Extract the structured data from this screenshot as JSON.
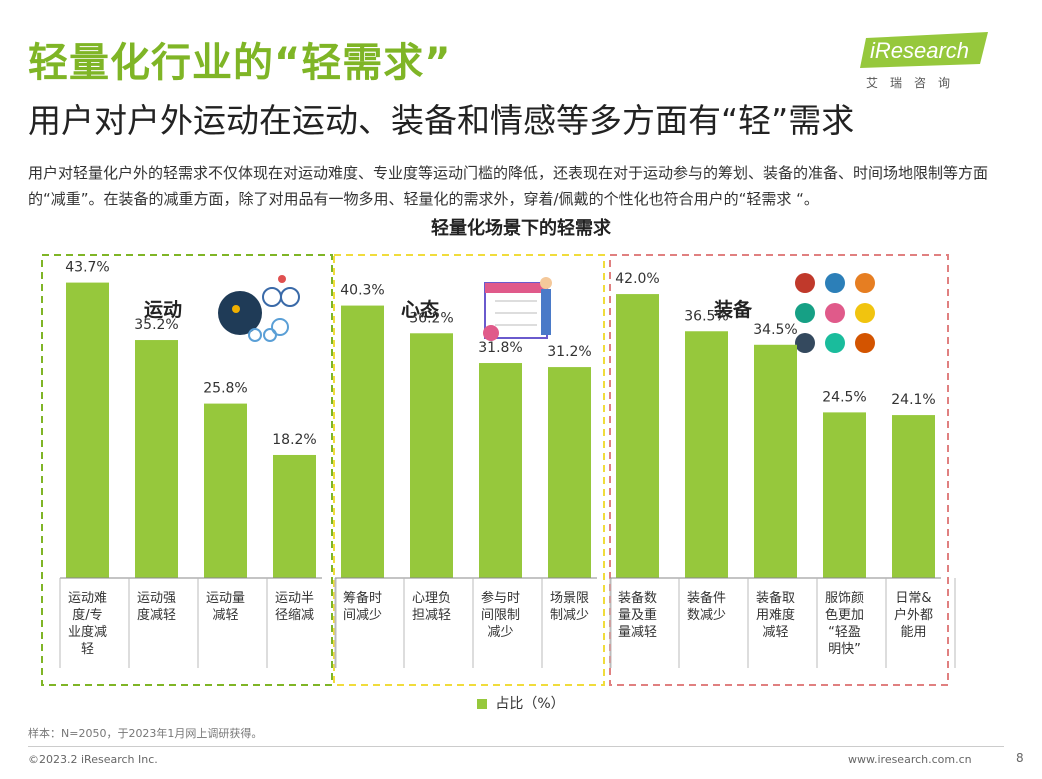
{
  "header": {
    "title": "轻量化行业的“轻需求”",
    "subtitle": "用户对户外运动在运动、装备和情感等多方面有“轻”需求",
    "intro": "用户对轻量化户外的轻需求不仅体现在对运动难度、专业度等运动门槛的降低，还表现在对于运动参与的筹划、装备的准备、时间场地限制等方面的“减重”。在装备的减重方面，除了对用品有一物多用、轻量化的需求外，穿着/佩戴的个性化也符合用户的“轻需求 “。"
  },
  "logo": {
    "brand": "iResearch",
    "cn": "艾瑞咨询"
  },
  "colors": {
    "accent": "#7fb526",
    "bar": "#96c83c",
    "group1_border": "#7fb526",
    "group2_border": "#f0dc3c",
    "group3_border": "#e08080"
  },
  "chart_data": {
    "type": "bar",
    "title": "轻量化场景下的轻需求",
    "ylim": [
      0,
      50
    ],
    "unit": "%",
    "legend": [
      "占比（%）"
    ],
    "groups": [
      {
        "name": "运动",
        "icon": "cycling-icon",
        "categories": [
          "运动难度/专业度减轻",
          "运动强度减轻",
          "运动量减轻",
          "运动半径缩减"
        ],
        "wrapped": [
          [
            "运动难",
            "度/专",
            "业度减",
            "轻"
          ],
          [
            "运动强",
            "度减轻"
          ],
          [
            "运动量",
            "减轻"
          ],
          [
            "运动半",
            "径缩减"
          ]
        ],
        "values": [
          43.7,
          35.2,
          25.8,
          18.2
        ],
        "value_labels": [
          "43.7%",
          "35.2%",
          "25.8%",
          "18.2%"
        ]
      },
      {
        "name": "心态",
        "icon": "calendar-planning-icon",
        "categories": [
          "筹备时间减少",
          "心理负担减轻",
          "参与时间限制减少",
          "场景限制减少"
        ],
        "wrapped": [
          [
            "筹备时",
            "间减少"
          ],
          [
            "心理负",
            "担减轻"
          ],
          [
            "参与时",
            "间限制",
            "减少"
          ],
          [
            "场景限",
            "制减少"
          ]
        ],
        "values": [
          40.3,
          36.2,
          31.8,
          31.2
        ],
        "value_labels": [
          "40.3%",
          "36.2%",
          "31.8%",
          "31.2%"
        ]
      },
      {
        "name": "装备",
        "icon": "outdoor-gear-icon",
        "categories": [
          "装备数量及重量减轻",
          "装备件数减少",
          "装备取用难度减轻",
          "服饰颜色更加“轻盈明快”",
          "日常&户外都能用"
        ],
        "wrapped": [
          [
            "装备数",
            "量及重",
            "量减轻"
          ],
          [
            "装备件",
            "数减少"
          ],
          [
            "装备取",
            "用难度",
            "减轻"
          ],
          [
            "服饰颜",
            "色更加",
            "“轻盈",
            "明快”"
          ],
          [
            "日常&",
            "户外都",
            "能用"
          ]
        ],
        "values": [
          42.0,
          36.5,
          34.5,
          24.5,
          24.1
        ],
        "value_labels": [
          "42.0%",
          "36.5%",
          "34.5%",
          "24.5%",
          "24.1%"
        ]
      }
    ]
  },
  "footer": {
    "note": "样本：N=2050，于2023年1月网上调研获得。",
    "copyright": "©2023.2 iResearch Inc.",
    "website": "www.iresearch.com.cn",
    "page": "8"
  }
}
